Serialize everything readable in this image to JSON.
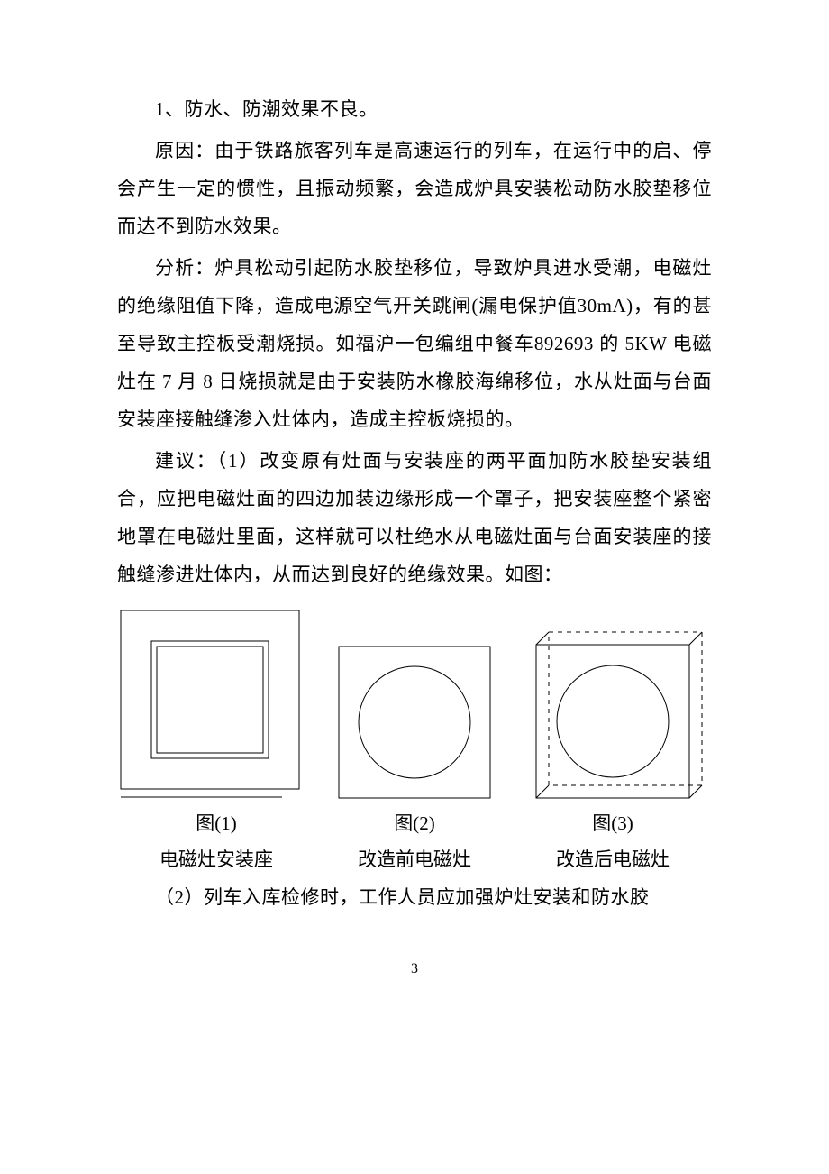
{
  "paragraphs": {
    "p1": "1、防水、防潮效果不良。",
    "p2": "原因：由于铁路旅客列车是高速运行的列车，在运行中的启、停会产生一定的惯性，且振动频繁，会造成炉具安装松动防水胶垫移位而达不到防水效果。",
    "p3": "分析：炉具松动引起防水胶垫移位，导致炉具进水受潮，电磁灶的绝缘阻值下降，造成电源空气开关跳闸(漏电保护值30mA)，有的甚至导致主控板受潮烧损。如福沪一包编组中餐车892693 的 5KW 电磁灶在 7 月 8 日烧损就是由于安装防水橡胶海绵移位，水从灶面与台面安装座接触缝渗入灶体内，造成主控板烧损的。",
    "p4": "建议：（1）改变原有灶面与安装座的两平面加防水胶垫安装组合，应把电磁灶面的四边加装边缘形成一个罩子，把安装座整个紧密地罩在电磁灶里面，这样就可以杜绝水从电磁灶面与台面安装座的接触缝渗进灶体内，从而达到良好的绝缘效果。如图：",
    "p5": "（2）列车入库检修时，工作人员应加强炉灶安装和防水胶"
  },
  "figures": {
    "fig1": {
      "label": "图(1)",
      "caption": "电磁灶安装座"
    },
    "fig2": {
      "label": "图(2)",
      "caption": "改造前电磁灶"
    },
    "fig3": {
      "label": "图(3)",
      "caption": "改造后电磁灶"
    }
  },
  "diagrams": {
    "stroke_color": "#000000",
    "fill_color": "#ffffff",
    "stroke_width": 1,
    "fig1": {
      "type": "nested-squares",
      "outer_size": 200,
      "inner_size": 130,
      "inner_border_double": true
    },
    "fig2": {
      "type": "square-circle",
      "size": 170,
      "circle_r": 62
    },
    "fig3": {
      "type": "3d-box-circle-dashed",
      "size": 170,
      "depth": 14,
      "circle_r": 62,
      "dash": "5,5"
    }
  },
  "page_number": "3"
}
